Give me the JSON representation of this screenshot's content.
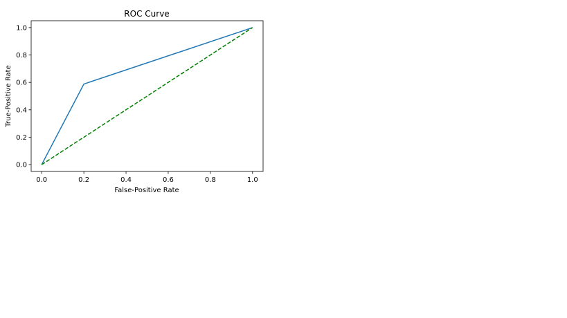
{
  "chart_data": {
    "type": "line",
    "title": "ROC Curve",
    "xlabel": "False-Positive Rate",
    "ylabel": "True-Positive Rate",
    "xlim": [
      -0.05,
      1.05
    ],
    "ylim": [
      -0.05,
      1.05
    ],
    "xticks": [
      "0.0",
      "0.2",
      "0.4",
      "0.6",
      "0.8",
      "1.0"
    ],
    "yticks": [
      "0.0",
      "0.2",
      "0.4",
      "0.6",
      "0.8",
      "1.0"
    ],
    "grid": false,
    "series": [
      {
        "x": [
          0.0,
          0.2,
          1.0
        ],
        "y": [
          0.0,
          0.588,
          1.0
        ],
        "color": "#1f77b4",
        "style": "solid"
      },
      {
        "x": [
          0.0,
          1.0
        ],
        "y": [
          0.0,
          1.0
        ],
        "color": "#008000",
        "style": "dashed"
      }
    ]
  }
}
